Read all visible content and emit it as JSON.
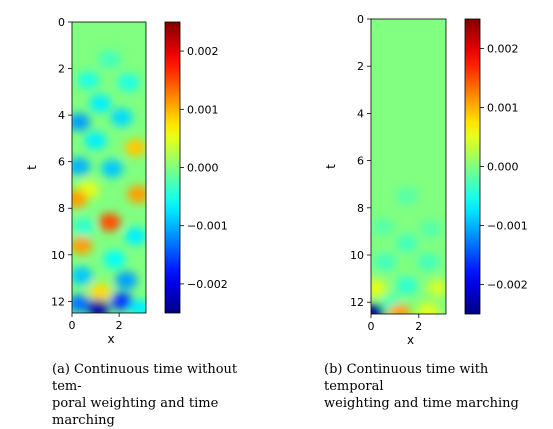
{
  "chart_data": [
    {
      "type": "heatmap",
      "caption_lines": [
        "(a) Continuous time without tem-",
        "poral weighting and time marching"
      ],
      "xlabel": "x",
      "ylabel": "t",
      "xlim": [
        0,
        3.14
      ],
      "ylim": [
        12.5,
        0
      ],
      "xticks": [
        0,
        2
      ],
      "yticks": [
        0,
        2,
        4,
        6,
        8,
        10,
        12
      ],
      "colorbar": {
        "range": [
          -0.0025,
          0.0025
        ],
        "ticks": [
          0.002,
          0.001,
          0.0,
          -0.001,
          -0.002
        ],
        "tick_labels": [
          "0.002",
          "0.001",
          "0.000",
          "−0.001",
          "−0.002"
        ]
      },
      "colormap": "jet",
      "blobs": [
        {
          "x": 1.6,
          "t": 1.6,
          "value": -0.0003
        },
        {
          "x": 0.7,
          "t": 2.5,
          "value": -0.0005
        },
        {
          "x": 2.4,
          "t": 2.6,
          "value": -0.0005
        },
        {
          "x": 1.2,
          "t": 3.5,
          "value": -0.0007
        },
        {
          "x": 0.3,
          "t": 4.3,
          "value": -0.0011
        },
        {
          "x": 2.1,
          "t": 4.1,
          "value": -0.0008
        },
        {
          "x": 1.0,
          "t": 5.1,
          "value": -0.0007
        },
        {
          "x": 2.7,
          "t": 5.4,
          "value": 0.0009
        },
        {
          "x": 0.3,
          "t": 6.2,
          "value": -0.001
        },
        {
          "x": 1.7,
          "t": 6.3,
          "value": -0.0009
        },
        {
          "x": 0.7,
          "t": 7.2,
          "value": 0.0005
        },
        {
          "x": 2.8,
          "t": 7.4,
          "value": 0.0011
        },
        {
          "x": 0.2,
          "t": 7.6,
          "value": 0.0011
        },
        {
          "x": 1.6,
          "t": 8.6,
          "value": 0.0015
        },
        {
          "x": 0.5,
          "t": 8.8,
          "value": -0.0004
        },
        {
          "x": 2.7,
          "t": 9.2,
          "value": -0.0007
        },
        {
          "x": 0.4,
          "t": 9.6,
          "value": 0.0011
        },
        {
          "x": 1.8,
          "t": 10.2,
          "value": -0.0006
        },
        {
          "x": 0.4,
          "t": 10.9,
          "value": -0.0009
        },
        {
          "x": 2.3,
          "t": 11.1,
          "value": -0.0011
        },
        {
          "x": 1.2,
          "t": 11.6,
          "value": 0.0008
        },
        {
          "x": 0.3,
          "t": 12.1,
          "value": -0.0013
        },
        {
          "x": 1.1,
          "t": 12.3,
          "value": -0.0023
        },
        {
          "x": 2.1,
          "t": 12.0,
          "value": -0.0016
        },
        {
          "x": 2.9,
          "t": 12.3,
          "value": -0.0007
        }
      ]
    },
    {
      "type": "heatmap",
      "caption_lines": [
        "(b) Continuous time with temporal",
        "weighting and time marching"
      ],
      "xlabel": "x",
      "ylabel": "t",
      "xlim": [
        0,
        3.14
      ],
      "ylim": [
        12.5,
        0
      ],
      "xticks": [
        0,
        2
      ],
      "yticks": [
        0,
        2,
        4,
        6,
        8,
        10,
        12
      ],
      "colorbar": {
        "range": [
          -0.0025,
          0.0025
        ],
        "ticks": [
          0.002,
          0.001,
          0.0,
          -0.001,
          -0.002
        ],
        "tick_labels": [
          "0.002",
          "0.001",
          "0.000",
          "−0.001",
          "−0.002"
        ]
      },
      "colormap": "jet",
      "blobs": [
        {
          "x": 1.5,
          "t": 7.5,
          "value": -0.0002
        },
        {
          "x": 0.5,
          "t": 8.8,
          "value": -0.0002
        },
        {
          "x": 2.5,
          "t": 8.9,
          "value": -0.0002
        },
        {
          "x": 1.5,
          "t": 9.5,
          "value": -0.0003
        },
        {
          "x": 0.6,
          "t": 10.3,
          "value": -0.0003
        },
        {
          "x": 2.4,
          "t": 10.3,
          "value": -0.0003
        },
        {
          "x": 0.2,
          "t": 11.4,
          "value": 0.0005
        },
        {
          "x": 2.8,
          "t": 11.4,
          "value": 0.0004
        },
        {
          "x": 1.5,
          "t": 11.3,
          "value": -0.0004
        },
        {
          "x": 0.9,
          "t": 12.1,
          "value": -0.0003
        },
        {
          "x": 0.1,
          "t": 12.45,
          "value": -0.0024
        },
        {
          "x": 1.2,
          "t": 12.45,
          "value": 0.0011
        },
        {
          "x": 2.4,
          "t": 12.4,
          "value": 0.0005
        }
      ]
    }
  ]
}
